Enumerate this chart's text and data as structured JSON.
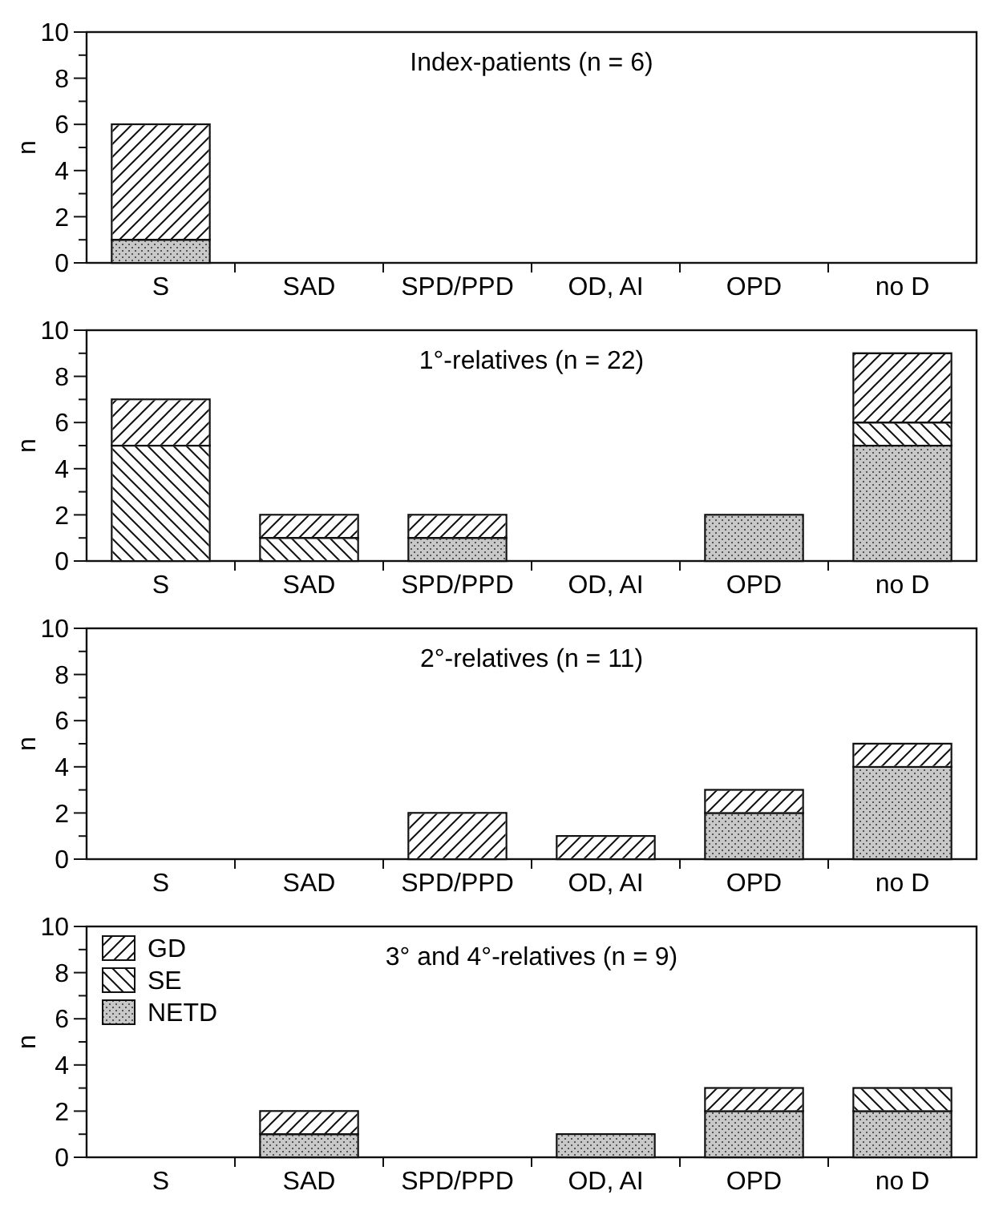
{
  "chart_data": [
    {
      "type": "bar",
      "stacked": true,
      "title": "Index-patients (n = 6)",
      "ylabel": "n",
      "categories": [
        "S",
        "SAD",
        "SPD/PPD",
        "OD, AI",
        "OPD",
        "no D"
      ],
      "ylim": [
        0,
        10
      ],
      "yticks": [
        0,
        {
          "value": 1,
          "label": null
        },
        2,
        {
          "value": 3,
          "label": null
        },
        4,
        {
          "value": 5,
          "label": null
        },
        6,
        {
          "value": 7,
          "label": null
        },
        8,
        {
          "value": 9,
          "label": null
        },
        10
      ],
      "series": [
        {
          "color": "#c8c8c8",
          "values": [
            1,
            0,
            0,
            0,
            0,
            0
          ]
        },
        {
          "color": "#ffffff",
          "values": [
            0,
            0,
            0,
            0,
            0,
            0
          ]
        },
        {
          "color": "#ffffff",
          "values": [
            5,
            0,
            0,
            0,
            0,
            0
          ]
        }
      ]
    },
    {
      "type": "bar",
      "stacked": true,
      "title": "1°-relatives (n = 22)",
      "ylabel": "n",
      "categories": [
        "S",
        "SAD",
        "SPD/PPD",
        "OD, AI",
        "OPD",
        "no D"
      ],
      "ylim": [
        0,
        10
      ],
      "yticks": [
        0,
        {
          "value": 1,
          "label": null
        },
        2,
        {
          "value": 3,
          "label": null
        },
        4,
        {
          "value": 5,
          "label": null
        },
        6,
        {
          "value": 7,
          "label": null
        },
        8,
        {
          "value": 9,
          "label": null
        },
        10
      ],
      "series": [
        {
          "color": "#c8c8c8",
          "values": [
            0,
            0,
            1,
            0,
            2,
            5
          ]
        },
        {
          "color": "#ffffff",
          "values": [
            5,
            1,
            0,
            0,
            0,
            1
          ]
        },
        {
          "color": "#ffffff",
          "values": [
            2,
            1,
            1,
            0,
            0,
            3
          ]
        }
      ]
    },
    {
      "type": "bar",
      "stacked": true,
      "title": "2°-relatives (n = 11)",
      "ylabel": "n",
      "categories": [
        "S",
        "SAD",
        "SPD/PPD",
        "OD, AI",
        "OPD",
        "no D"
      ],
      "ylim": [
        0,
        10
      ],
      "yticks": [
        0,
        {
          "value": 1,
          "label": null
        },
        2,
        {
          "value": 3,
          "label": null
        },
        4,
        {
          "value": 5,
          "label": null
        },
        6,
        {
          "value": 7,
          "label": null
        },
        8,
        {
          "value": 9,
          "label": null
        },
        10
      ],
      "series": [
        {
          "color": "#c8c8c8",
          "values": [
            0,
            0,
            0,
            0,
            2,
            4
          ]
        },
        {
          "color": "#ffffff",
          "values": [
            0,
            0,
            0,
            0,
            0,
            0
          ]
        },
        {
          "color": "#ffffff",
          "values": [
            0,
            0,
            2,
            1,
            1,
            1
          ]
        }
      ]
    },
    {
      "type": "bar",
      "stacked": true,
      "title": "3° and 4°-relatives (n = 9)",
      "ylabel": "n",
      "categories": [
        "S",
        "SAD",
        "SPD/PPD",
        "OD, AI",
        "OPD",
        "no D"
      ],
      "ylim": [
        0,
        10
      ],
      "yticks": [
        0,
        {
          "value": 1,
          "label": null
        },
        2,
        {
          "value": 3,
          "label": null
        },
        4,
        {
          "value": 5,
          "label": null
        },
        6,
        {
          "value": 7,
          "label": null
        },
        8,
        {
          "value": 9,
          "label": null
        },
        10
      ],
      "legend": "top left",
      "series": [
        {
          "name": "NETD",
          "color": "#c8c8c8",
          "values": [
            0,
            1,
            0,
            1,
            2,
            2
          ]
        },
        {
          "name": "SE",
          "color": "#ffffff",
          "values": [
            0,
            0,
            0,
            0,
            0,
            1
          ]
        },
        {
          "name": "GD",
          "color": "#ffffff",
          "values": [
            0,
            1,
            0,
            0,
            1,
            0
          ]
        }
      ]
    }
  ]
}
